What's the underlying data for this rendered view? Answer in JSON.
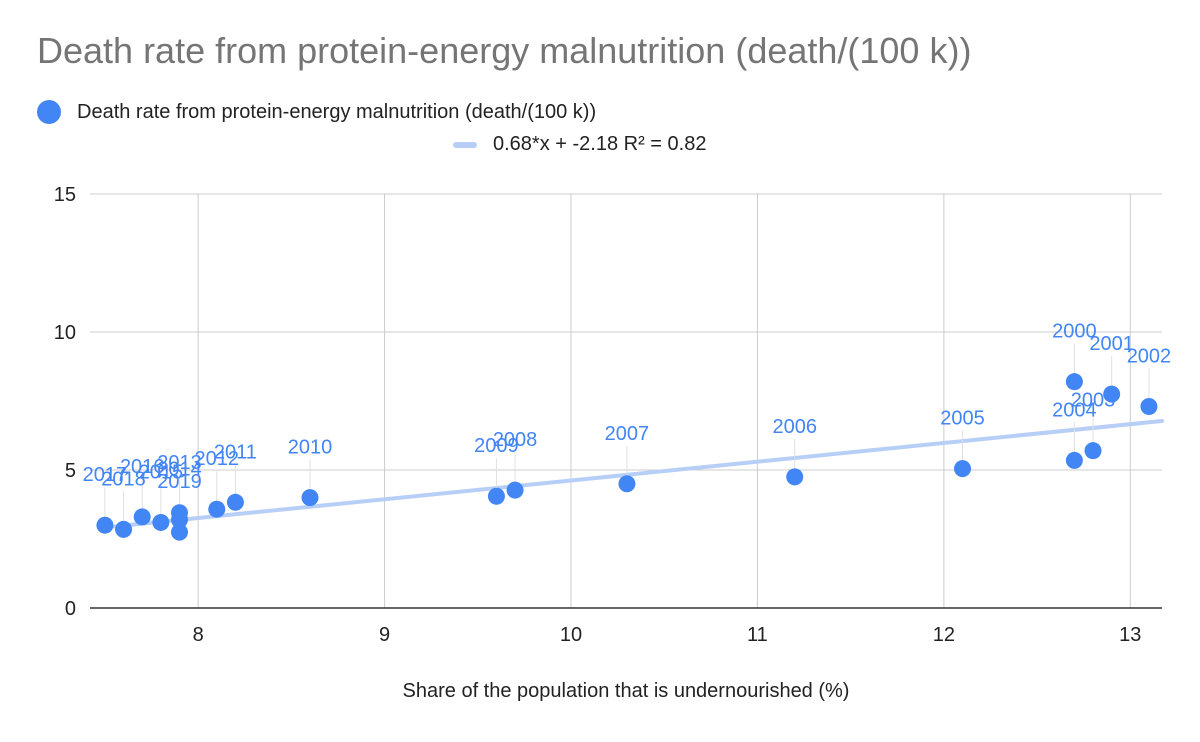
{
  "chart_data": {
    "type": "scatter",
    "title": "Death rate from protein-energy malnutrition (death/(100 k))",
    "xlabel": "Share of the population that is undernourished (%)",
    "ylabel": "",
    "xlim": [
      7.42,
      13.17
    ],
    "ylim": [
      0,
      15
    ],
    "x_ticks": [
      8,
      9,
      10,
      11,
      12,
      13
    ],
    "y_ticks": [
      0,
      5,
      10,
      15
    ],
    "grid": true,
    "legend_position": "top-left",
    "series": [
      {
        "name": "Death rate from protein-energy malnutrition (death/(100 k))",
        "points": [
          {
            "label": "2000",
            "x": 12.7,
            "y": 8.2
          },
          {
            "label": "2001",
            "x": 12.9,
            "y": 7.75
          },
          {
            "label": "2002",
            "x": 13.1,
            "y": 7.3
          },
          {
            "label": "2003",
            "x": 12.8,
            "y": 5.7
          },
          {
            "label": "2004",
            "x": 12.7,
            "y": 5.35
          },
          {
            "label": "2005",
            "x": 12.1,
            "y": 5.05
          },
          {
            "label": "2006",
            "x": 11.2,
            "y": 4.75
          },
          {
            "label": "2007",
            "x": 10.3,
            "y": 4.5
          },
          {
            "label": "2008",
            "x": 9.7,
            "y": 4.27
          },
          {
            "label": "2009",
            "x": 9.6,
            "y": 4.05
          },
          {
            "label": "2010",
            "x": 8.6,
            "y": 4.0
          },
          {
            "label": "2011",
            "x": 8.2,
            "y": 3.83
          },
          {
            "label": "2012",
            "x": 8.1,
            "y": 3.58
          },
          {
            "label": "2013",
            "x": 7.9,
            "y": 3.45
          },
          {
            "label": "2014",
            "x": 7.9,
            "y": 3.2
          },
          {
            "label": "2015",
            "x": 7.8,
            "y": 3.1
          },
          {
            "label": "2016",
            "x": 7.7,
            "y": 3.3
          },
          {
            "label": "2017",
            "x": 7.5,
            "y": 3.0
          },
          {
            "label": "2018",
            "x": 7.6,
            "y": 2.85
          },
          {
            "label": "2019",
            "x": 7.9,
            "y": 2.75
          }
        ]
      }
    ],
    "trendline": {
      "label": "0.68*x + -2.18 R² = 0.82",
      "slope": 0.68,
      "intercept": -2.18,
      "x_range": [
        7.5,
        13.17
      ]
    }
  },
  "colors": {
    "points": "#4285f4",
    "trendline": "#b7cff7",
    "grid": "#cccccc",
    "axis_line": "#333333",
    "title": "#757575",
    "point_labels": "#4285f4"
  }
}
